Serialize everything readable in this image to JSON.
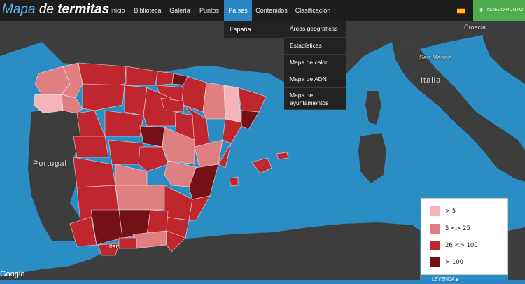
{
  "brand": {
    "part1": "Mapa",
    "part2": "de",
    "part3": "termitas"
  },
  "nav": {
    "items": [
      {
        "label": "Inicio"
      },
      {
        "label": "Biblioteca"
      },
      {
        "label": "Galería"
      },
      {
        "label": "Puntos"
      },
      {
        "label": "Países"
      },
      {
        "label": "Contenidos"
      },
      {
        "label": "Clasificación"
      }
    ],
    "new_point": "NUEVO PUNTO"
  },
  "submenu": {
    "country": "España",
    "items": [
      "Áreas geográficas",
      "Estadísticas",
      "Mapa de calor",
      "Mapa de ADN",
      "Mapa de ayuntamientos"
    ]
  },
  "map": {
    "labels": {
      "portugal": "Portugal",
      "italia": "Italia",
      "croacia": "Croacia",
      "san_marino": "San Marino",
      "gibraltar": "ltar"
    },
    "attribution": "Google"
  },
  "legend": {
    "items": [
      {
        "label": "> 5",
        "color": "#f5b5b8"
      },
      {
        "label": "5 <> 25",
        "color": "#e07f82"
      },
      {
        "label": "26 <> 100",
        "color": "#c0262e"
      },
      {
        "label": "> 100",
        "color": "#741116"
      }
    ],
    "toggle": "LEYENDA ▴"
  },
  "colors": {
    "sea": "#2a8ec4",
    "land": "#3e3e3e",
    "navbar": "#1d1d1d",
    "accent": "#2b86c5",
    "button": "#4cae4c"
  }
}
